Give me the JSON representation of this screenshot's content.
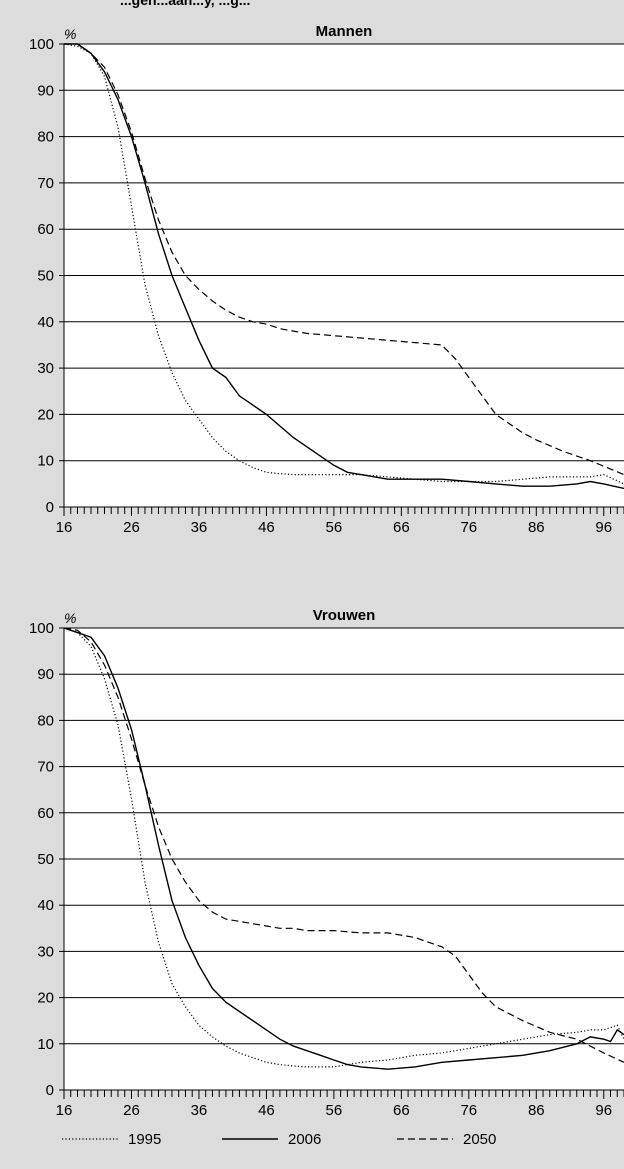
{
  "header_fragment": "...gen...aan...y, ...g...",
  "chart_data": [
    {
      "type": "line",
      "title": "Mannen",
      "ylabel": "%",
      "xlabel": "",
      "xlim": [
        16,
        99
      ],
      "ylim": [
        0,
        100
      ],
      "x_ticks": [
        16,
        26,
        36,
        46,
        56,
        66,
        76,
        86,
        96
      ],
      "y_ticks": [
        0,
        10,
        20,
        30,
        40,
        50,
        60,
        70,
        80,
        90,
        100
      ],
      "grid": "horizontal",
      "series": [
        {
          "name": "1995",
          "style": "dotted",
          "x": [
            16,
            18,
            20,
            22,
            24,
            26,
            28,
            30,
            32,
            34,
            36,
            38,
            40,
            42,
            44,
            46,
            48,
            50,
            52,
            54,
            56,
            60,
            64,
            68,
            72,
            76,
            80,
            84,
            88,
            92,
            94,
            96,
            99
          ],
          "y": [
            100,
            99.5,
            98,
            93,
            82,
            65,
            48,
            37,
            29,
            23,
            19,
            15,
            12,
            10,
            8.5,
            7.5,
            7.2,
            7,
            7,
            7,
            7,
            7,
            6.5,
            6,
            5.5,
            5.5,
            5.5,
            6,
            6.5,
            6.5,
            6.5,
            7,
            5
          ]
        },
        {
          "name": "2006",
          "style": "solid",
          "x": [
            16,
            18,
            20,
            22,
            24,
            26,
            28,
            30,
            32,
            34,
            36,
            38,
            40,
            42,
            44,
            46,
            48,
            50,
            52,
            54,
            56,
            58,
            60,
            64,
            68,
            72,
            76,
            80,
            84,
            88,
            92,
            94,
            96,
            99
          ],
          "y": [
            100,
            100,
            98,
            94,
            88,
            80,
            70,
            59,
            50,
            43,
            36,
            30,
            28,
            24,
            22,
            20,
            17.5,
            15,
            13,
            11,
            9,
            7.5,
            7,
            6,
            6,
            6,
            5.5,
            5,
            4.5,
            4.5,
            5,
            5.5,
            5,
            4
          ]
        },
        {
          "name": "2050",
          "style": "dashed",
          "x": [
            16,
            18,
            20,
            22,
            24,
            26,
            28,
            30,
            32,
            34,
            36,
            38,
            40,
            42,
            44,
            46,
            48,
            50,
            52,
            56,
            60,
            64,
            68,
            72,
            74,
            76,
            78,
            80,
            82,
            84,
            86,
            90,
            94,
            99
          ],
          "y": [
            100,
            100,
            98,
            95,
            89,
            81,
            71,
            62,
            55,
            50,
            47,
            44.5,
            42.5,
            41,
            40,
            39.5,
            38.5,
            38,
            37.5,
            37,
            36.5,
            36,
            35.5,
            35,
            32,
            28,
            24,
            20,
            18,
            16,
            14.5,
            12,
            10,
            7
          ]
        }
      ]
    },
    {
      "type": "line",
      "title": "Vrouwen",
      "ylabel": "%",
      "xlabel": "",
      "xlim": [
        16,
        99
      ],
      "ylim": [
        0,
        100
      ],
      "x_ticks": [
        16,
        26,
        36,
        46,
        56,
        66,
        76,
        86,
        96
      ],
      "y_ticks": [
        0,
        10,
        20,
        30,
        40,
        50,
        60,
        70,
        80,
        90,
        100
      ],
      "grid": "horizontal",
      "series": [
        {
          "name": "1995",
          "style": "dotted",
          "x": [
            16,
            18,
            20,
            22,
            24,
            26,
            28,
            30,
            32,
            34,
            36,
            38,
            40,
            42,
            44,
            46,
            48,
            50,
            52,
            54,
            56,
            58,
            60,
            64,
            68,
            72,
            76,
            80,
            84,
            88,
            92,
            94,
            96,
            98,
            99
          ],
          "y": [
            100,
            99,
            96,
            89,
            79,
            63,
            45,
            32,
            23,
            18,
            14,
            11.5,
            9.5,
            8,
            7,
            6,
            5.5,
            5.2,
            5,
            5,
            5,
            5.5,
            6,
            6.5,
            7.5,
            8,
            9,
            10,
            11,
            12,
            12.5,
            13,
            13,
            14,
            11
          ]
        },
        {
          "name": "2006",
          "style": "solid",
          "x": [
            16,
            18,
            20,
            22,
            24,
            26,
            28,
            30,
            32,
            34,
            36,
            38,
            40,
            42,
            44,
            46,
            48,
            50,
            52,
            54,
            56,
            58,
            60,
            64,
            68,
            72,
            76,
            80,
            84,
            88,
            92,
            94,
            96,
            97,
            98,
            99
          ],
          "y": [
            100,
            99,
            98,
            94,
            87,
            78,
            66,
            53,
            41,
            33,
            27,
            22,
            19,
            17,
            15,
            13,
            11,
            9.5,
            8.5,
            7.5,
            6.5,
            5.5,
            5,
            4.5,
            5,
            6,
            6.5,
            7,
            7.5,
            8.5,
            10,
            11.5,
            11,
            10.5,
            13,
            12
          ]
        },
        {
          "name": "2050",
          "style": "dashed",
          "x": [
            16,
            18,
            20,
            22,
            24,
            26,
            28,
            30,
            32,
            34,
            36,
            38,
            40,
            42,
            44,
            46,
            48,
            50,
            52,
            56,
            60,
            64,
            68,
            72,
            74,
            76,
            78,
            80,
            84,
            88,
            92,
            96,
            99
          ],
          "y": [
            100,
            99.5,
            97,
            92,
            85,
            76,
            66,
            57,
            50,
            45,
            41,
            38.5,
            37,
            36.5,
            36,
            35.5,
            35,
            35,
            34.5,
            34.5,
            34,
            34,
            33,
            31,
            29,
            25,
            21,
            18,
            15,
            12.5,
            11,
            8,
            6
          ]
        }
      ]
    }
  ]
}
